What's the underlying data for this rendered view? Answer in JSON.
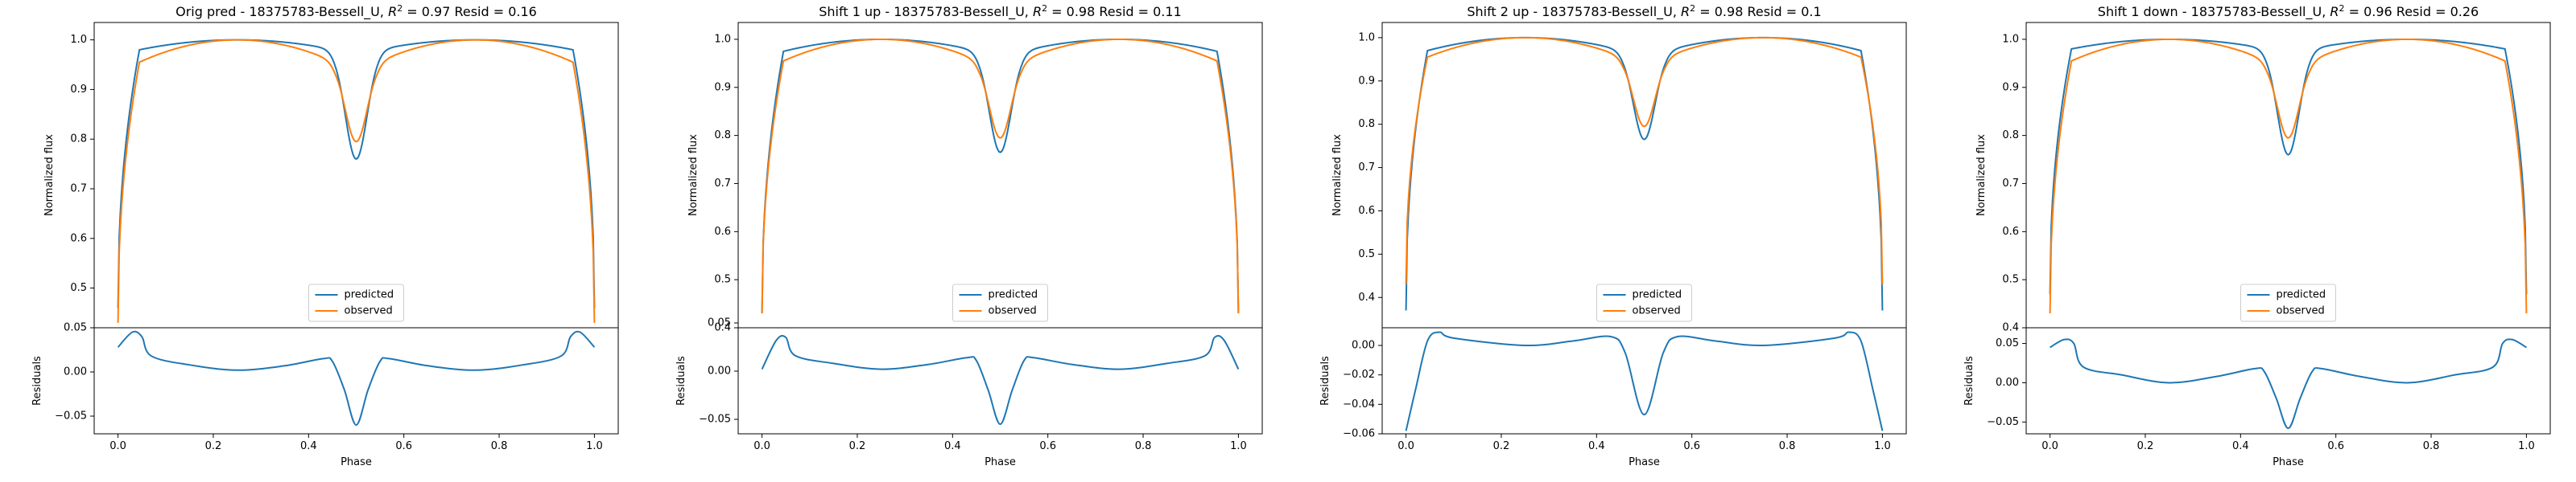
{
  "colors": {
    "predicted": "#1f77b4",
    "observed": "#ff7f0e",
    "axis": "#000000",
    "background": "#ffffff"
  },
  "chart_data": [
    {
      "type": "line",
      "title": "Orig pred - 18375783-Bessell_U, $R^2 = 0.97$ Resid = 0.16",
      "title_parts": {
        "prefix": "Orig pred - 18375783-Bessell_U, ",
        "r2_value": " = 0.97 Resid = 0.16"
      },
      "legend": {
        "entries": [
          "predicted",
          "observed"
        ],
        "placement": "lower center"
      },
      "top": {
        "ylabel": "Normalized flux",
        "ylim": [
          0.42,
          1.035
        ],
        "yticks": [
          0.5,
          0.6,
          0.7,
          0.8,
          0.9,
          1.0
        ],
        "ytick_labels": [
          "0.5",
          "0.6",
          "0.7",
          "0.8",
          "0.9",
          "1.0"
        ],
        "predicted": {
          "edge": 0.46,
          "plateau": 0.98,
          "peak": 1.0,
          "dip": 0.78
        },
        "observed": {
          "edge": 0.43,
          "plateau": 0.955,
          "peak": 1.0,
          "dip": 0.84
        }
      },
      "bottom": {
        "ylabel": "Residuals",
        "xlabel": "Phase",
        "ylim": [
          -0.07,
          0.05
        ],
        "yticks": [
          -0.05,
          0.0,
          0.05
        ],
        "ytick_labels": [
          "−0.05",
          "0.00",
          "0.05"
        ],
        "residuals": [
          {
            "x": 0.0,
            "y": 0.028
          },
          {
            "x": 0.03,
            "y": 0.045
          },
          {
            "x": 0.05,
            "y": 0.04
          },
          {
            "x": 0.07,
            "y": 0.018
          },
          {
            "x": 0.15,
            "y": 0.008
          },
          {
            "x": 0.25,
            "y": 0.002
          },
          {
            "x": 0.35,
            "y": 0.007
          },
          {
            "x": 0.43,
            "y": 0.015
          },
          {
            "x": 0.45,
            "y": 0.012
          },
          {
            "x": 0.475,
            "y": -0.02
          },
          {
            "x": 0.5,
            "y": -0.06
          },
          {
            "x": 0.525,
            "y": -0.02
          },
          {
            "x": 0.55,
            "y": 0.012
          },
          {
            "x": 0.57,
            "y": 0.015
          },
          {
            "x": 0.65,
            "y": 0.007
          },
          {
            "x": 0.75,
            "y": 0.002
          },
          {
            "x": 0.85,
            "y": 0.008
          },
          {
            "x": 0.93,
            "y": 0.018
          },
          {
            "x": 0.95,
            "y": 0.04
          },
          {
            "x": 0.97,
            "y": 0.045
          },
          {
            "x": 1.0,
            "y": 0.028
          }
        ]
      },
      "xlim": [
        -0.05,
        1.05
      ],
      "xticks": [
        0.0,
        0.2,
        0.4,
        0.6,
        0.8,
        1.0
      ],
      "xtick_labels": [
        "0.0",
        "0.2",
        "0.4",
        "0.6",
        "0.8",
        "1.0"
      ]
    },
    {
      "type": "line",
      "title": "Shift 1 up - 18375783-Bessell_U, $R^2 = 0.98$ Resid = 0.11",
      "title_parts": {
        "prefix": "Shift 1 up - 18375783-Bessell_U, ",
        "r2_value": " = 0.98 Resid = 0.11"
      },
      "legend": {
        "entries": [
          "predicted",
          "observed"
        ],
        "placement": "lower center"
      },
      "top": {
        "ylabel": "Normalized flux",
        "ylim": [
          0.4,
          1.035
        ],
        "yticks": [
          0.4,
          0.5,
          0.6,
          0.7,
          0.8,
          0.9,
          1.0
        ],
        "ytick_labels": [
          "0.4",
          "0.5",
          "0.6",
          "0.7",
          "0.8",
          "0.9",
          "1.0"
        ],
        "predicted": {
          "edge": 0.43,
          "plateau": 0.975,
          "peak": 1.0,
          "dip": 0.79
        },
        "observed": {
          "edge": 0.43,
          "plateau": 0.955,
          "peak": 1.0,
          "dip": 0.84
        }
      },
      "bottom": {
        "ylabel": "Residuals",
        "xlabel": "Phase",
        "ylim": [
          -0.065,
          0.045
        ],
        "yticks": [
          -0.05,
          0.0,
          0.05
        ],
        "ytick_labels": [
          "−0.05",
          "0.00",
          "0.05"
        ],
        "residuals": [
          {
            "x": 0.0,
            "y": 0.002
          },
          {
            "x": 0.03,
            "y": 0.032
          },
          {
            "x": 0.05,
            "y": 0.035
          },
          {
            "x": 0.07,
            "y": 0.016
          },
          {
            "x": 0.15,
            "y": 0.008
          },
          {
            "x": 0.25,
            "y": 0.002
          },
          {
            "x": 0.35,
            "y": 0.007
          },
          {
            "x": 0.43,
            "y": 0.014
          },
          {
            "x": 0.45,
            "y": 0.011
          },
          {
            "x": 0.475,
            "y": -0.02
          },
          {
            "x": 0.5,
            "y": -0.055
          },
          {
            "x": 0.525,
            "y": -0.02
          },
          {
            "x": 0.55,
            "y": 0.011
          },
          {
            "x": 0.57,
            "y": 0.014
          },
          {
            "x": 0.65,
            "y": 0.007
          },
          {
            "x": 0.75,
            "y": 0.002
          },
          {
            "x": 0.85,
            "y": 0.008
          },
          {
            "x": 0.93,
            "y": 0.016
          },
          {
            "x": 0.95,
            "y": 0.035
          },
          {
            "x": 0.97,
            "y": 0.032
          },
          {
            "x": 1.0,
            "y": 0.002
          }
        ]
      },
      "xlim": [
        -0.05,
        1.05
      ],
      "xticks": [
        0.0,
        0.2,
        0.4,
        0.6,
        0.8,
        1.0
      ],
      "xtick_labels": [
        "0.0",
        "0.2",
        "0.4",
        "0.6",
        "0.8",
        "1.0"
      ]
    },
    {
      "type": "line",
      "title": "Shift 2 up - 18375783-Bessell_U, $R^2 = 0.98$ Resid = 0.1",
      "title_parts": {
        "prefix": "Shift 2 up - 18375783-Bessell_U, ",
        "r2_value": " = 0.98 Resid = 0.1"
      },
      "legend": {
        "entries": [
          "predicted",
          "observed"
        ],
        "placement": "lower center"
      },
      "top": {
        "ylabel": "Normalized flux",
        "ylim": [
          0.33,
          1.035
        ],
        "yticks": [
          0.4,
          0.5,
          0.6,
          0.7,
          0.8,
          0.9,
          1.0
        ],
        "ytick_labels": [
          "0.4",
          "0.5",
          "0.6",
          "0.7",
          "0.8",
          "0.9",
          "1.0"
        ],
        "predicted": {
          "edge": 0.37,
          "plateau": 0.97,
          "peak": 1.0,
          "dip": 0.795
        },
        "observed": {
          "edge": 0.43,
          "plateau": 0.955,
          "peak": 1.0,
          "dip": 0.84
        }
      },
      "bottom": {
        "ylabel": "Residuals",
        "xlabel": "Phase",
        "ylim": [
          -0.06,
          0.012
        ],
        "yticks": [
          -0.06,
          -0.04,
          -0.02,
          0.0
        ],
        "ytick_labels": [
          "−0.06",
          "−0.04",
          "−0.02",
          "0.00"
        ],
        "residuals": [
          {
            "x": 0.0,
            "y": -0.058
          },
          {
            "x": 0.02,
            "y": -0.03
          },
          {
            "x": 0.045,
            "y": 0.003
          },
          {
            "x": 0.07,
            "y": 0.009
          },
          {
            "x": 0.1,
            "y": 0.005
          },
          {
            "x": 0.25,
            "y": 0.0
          },
          {
            "x": 0.35,
            "y": 0.003
          },
          {
            "x": 0.43,
            "y": 0.006
          },
          {
            "x": 0.46,
            "y": -0.005
          },
          {
            "x": 0.5,
            "y": -0.047
          },
          {
            "x": 0.54,
            "y": -0.005
          },
          {
            "x": 0.57,
            "y": 0.006
          },
          {
            "x": 0.65,
            "y": 0.003
          },
          {
            "x": 0.75,
            "y": 0.0
          },
          {
            "x": 0.9,
            "y": 0.005
          },
          {
            "x": 0.93,
            "y": 0.009
          },
          {
            "x": 0.955,
            "y": 0.003
          },
          {
            "x": 0.98,
            "y": -0.03
          },
          {
            "x": 1.0,
            "y": -0.058
          }
        ]
      },
      "xlim": [
        -0.05,
        1.05
      ],
      "xticks": [
        0.0,
        0.2,
        0.4,
        0.6,
        0.8,
        1.0
      ],
      "xtick_labels": [
        "0.0",
        "0.2",
        "0.4",
        "0.6",
        "0.8",
        "1.0"
      ]
    },
    {
      "type": "line",
      "title": "Shift 1 down - 18375783-Bessell_U, $R^2 = 0.96$ Resid = 0.26",
      "title_parts": {
        "prefix": "Shift 1 down - 18375783-Bessell_U, ",
        "r2_value": " = 0.96 Resid = 0.26"
      },
      "legend": {
        "entries": [
          "predicted",
          "observed"
        ],
        "placement": "lower center"
      },
      "top": {
        "ylabel": "Normalized flux",
        "ylim": [
          0.4,
          1.035
        ],
        "yticks": [
          0.4,
          0.5,
          0.6,
          0.7,
          0.8,
          0.9,
          1.0
        ],
        "ytick_labels": [
          "0.4",
          "0.5",
          "0.6",
          "0.7",
          "0.8",
          "0.9",
          "1.0"
        ],
        "predicted": {
          "edge": 0.47,
          "plateau": 0.98,
          "peak": 1.0,
          "dip": 0.78
        },
        "observed": {
          "edge": 0.43,
          "plateau": 0.955,
          "peak": 1.0,
          "dip": 0.84
        }
      },
      "bottom": {
        "ylabel": "Residuals",
        "xlabel": "Phase",
        "ylim": [
          -0.065,
          0.07
        ],
        "yticks": [
          -0.05,
          0.0,
          0.05
        ],
        "ytick_labels": [
          "−0.05",
          "0.00",
          "0.05"
        ],
        "residuals": [
          {
            "x": 0.0,
            "y": 0.045
          },
          {
            "x": 0.03,
            "y": 0.055
          },
          {
            "x": 0.05,
            "y": 0.05
          },
          {
            "x": 0.07,
            "y": 0.02
          },
          {
            "x": 0.15,
            "y": 0.01
          },
          {
            "x": 0.25,
            "y": 0.0
          },
          {
            "x": 0.35,
            "y": 0.008
          },
          {
            "x": 0.43,
            "y": 0.018
          },
          {
            "x": 0.45,
            "y": 0.014
          },
          {
            "x": 0.475,
            "y": -0.02
          },
          {
            "x": 0.5,
            "y": -0.058
          },
          {
            "x": 0.525,
            "y": -0.02
          },
          {
            "x": 0.55,
            "y": 0.014
          },
          {
            "x": 0.57,
            "y": 0.018
          },
          {
            "x": 0.65,
            "y": 0.008
          },
          {
            "x": 0.75,
            "y": 0.0
          },
          {
            "x": 0.85,
            "y": 0.01
          },
          {
            "x": 0.93,
            "y": 0.02
          },
          {
            "x": 0.95,
            "y": 0.05
          },
          {
            "x": 0.97,
            "y": 0.055
          },
          {
            "x": 1.0,
            "y": 0.045
          }
        ]
      },
      "xlim": [
        -0.05,
        1.05
      ],
      "xticks": [
        0.0,
        0.2,
        0.4,
        0.6,
        0.8,
        1.0
      ],
      "xtick_labels": [
        "0.0",
        "0.2",
        "0.4",
        "0.6",
        "0.8",
        "1.0"
      ]
    }
  ]
}
